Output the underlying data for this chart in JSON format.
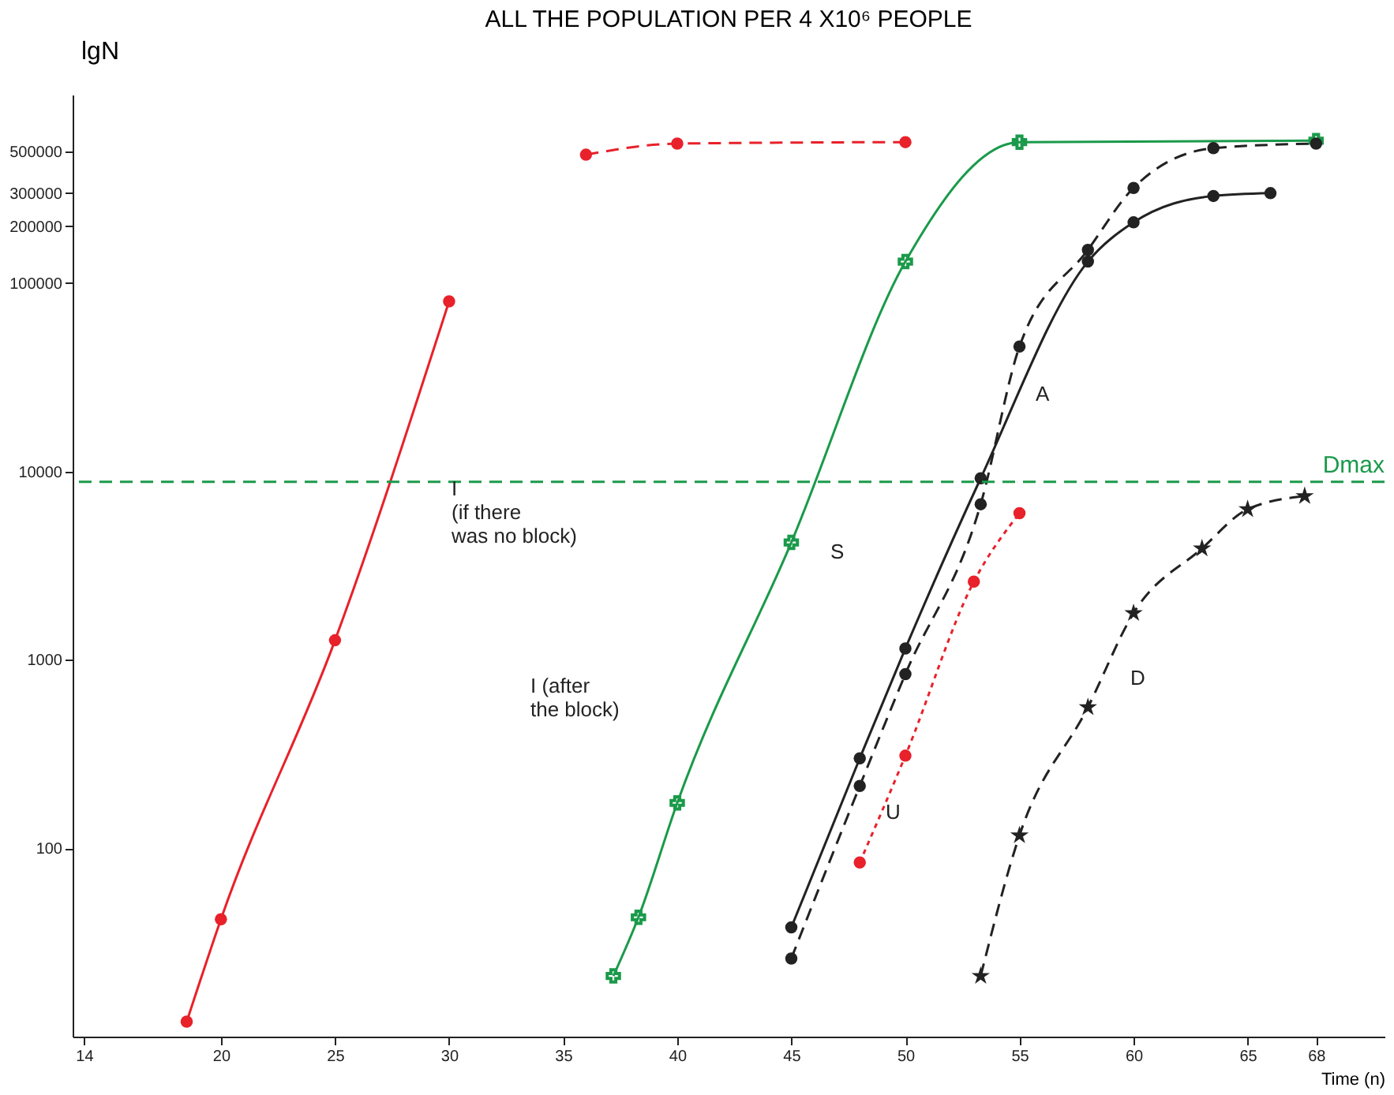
{
  "chart_data": {
    "type": "line",
    "title": "ALL THE POPULATION PER 4 X10⁶ PEOPLE",
    "xlabel": "Time (n)",
    "ylabel": "lgN",
    "log": "y",
    "grid": false,
    "xlim": [
      13.5,
      71
    ],
    "xticks": [
      14,
      20,
      25,
      30,
      35,
      40,
      45,
      50,
      55,
      60,
      65,
      68
    ],
    "ylim": [
      10,
      1000000
    ],
    "yticks": [
      100,
      1000,
      10000,
      100000,
      200000,
      300000,
      500000
    ],
    "series": [
      {
        "color": "#e8212a",
        "line_style": "solid",
        "marker": "circle",
        "x": [
          18.5,
          20,
          25,
          30
        ],
        "values": [
          12,
          42,
          1270,
          80000
        ]
      },
      {
        "color": "#e8212a",
        "line_style": "dashed",
        "marker": "circle",
        "x": [
          36,
          40,
          50
        ],
        "values": [
          480000,
          550000,
          560000
        ]
      },
      {
        "color": "#1a9a4a",
        "line_style": "solid",
        "marker": "cross",
        "x": [
          37.2,
          38.3,
          40,
          45,
          50,
          55,
          68
        ],
        "values": [
          21,
          43,
          174,
          4200,
          130000,
          560000,
          570000
        ]
      },
      {
        "color": "#222222",
        "line_style": "solid",
        "marker": "circle",
        "x": [
          45,
          48,
          50,
          53.3,
          58,
          60,
          63.5,
          66
        ],
        "values": [
          38,
          300,
          1150,
          9200,
          130000,
          210000,
          290000,
          300000
        ]
      },
      {
        "color": "#222222",
        "line_style": "dashed",
        "marker": "circle",
        "x": [
          45,
          48,
          50,
          53.3,
          55,
          58,
          60,
          63.5,
          68
        ],
        "values": [
          26,
          214,
          840,
          6700,
          46000,
          150000,
          320000,
          520000,
          550000
        ]
      },
      {
        "color": "#e8212a",
        "line_style": "dotted",
        "marker": "circle",
        "x": [
          48,
          50,
          53,
          55
        ],
        "values": [
          84,
          310,
          2600,
          6000
        ]
      },
      {
        "color": "#222222",
        "line_style": "dashed",
        "marker": "star",
        "x": [
          53.3,
          55,
          58,
          60,
          63,
          65,
          67.5
        ],
        "values": [
          21,
          117,
          560,
          1770,
          3900,
          6300,
          7400
        ]
      }
    ],
    "ref_lines": [
      {
        "axis": "y",
        "value": 8800,
        "label": "Dmax",
        "color": "#1a9a4a",
        "line_style": "dashed"
      }
    ],
    "annotations": [
      "I\n(if there\nwas no block)",
      "I (after\nthe block)",
      "S",
      "A",
      "U",
      "D"
    ]
  }
}
